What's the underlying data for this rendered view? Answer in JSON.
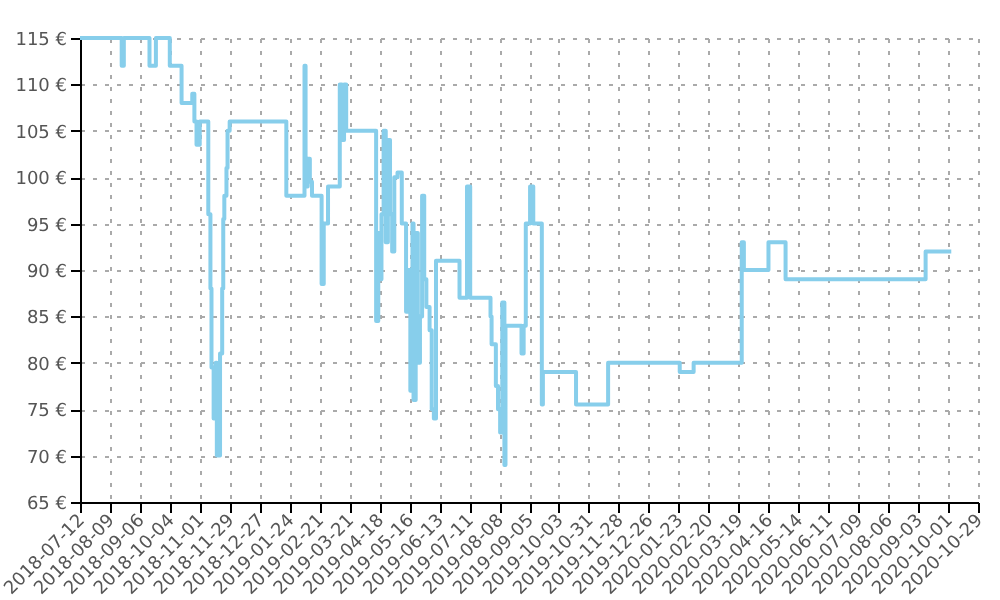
{
  "chart_data": {
    "type": "step",
    "grid": true,
    "line_style": "solid",
    "marker": "none",
    "xlim": [
      "2018-07-12",
      "2020-10-29"
    ],
    "xticks": [
      "2018-07-12",
      "2018-08-09",
      "2018-09-06",
      "2018-10-04",
      "2018-11-01",
      "2018-11-29",
      "2018-12-27",
      "2019-01-24",
      "2019-02-21",
      "2019-03-21",
      "2019-04-18",
      "2019-05-16",
      "2019-06-13",
      "2019-07-11",
      "2019-08-08",
      "2019-09-05",
      "2019-10-03",
      "2019-10-31",
      "2019-11-28",
      "2019-12-26",
      "2020-01-23",
      "2020-02-20",
      "2020-03-19",
      "2020-04-16",
      "2020-05-14",
      "2020-06-11",
      "2020-07-09",
      "2020-08-06",
      "2020-09-03",
      "2020-10-01",
      "2020-10-29"
    ],
    "ylim": [
      65,
      115
    ],
    "yticks": [
      {
        "value": 65,
        "label": "65 €"
      },
      {
        "value": 70,
        "label": "70 €"
      },
      {
        "value": 75,
        "label": "75 €"
      },
      {
        "value": 80,
        "label": "80 €"
      },
      {
        "value": 85,
        "label": "85 €"
      },
      {
        "value": 90,
        "label": "90 €"
      },
      {
        "value": 95,
        "label": "95 €"
      },
      {
        "value": 100,
        "label": "100 €"
      },
      {
        "value": 105,
        "label": "105 €"
      },
      {
        "value": 110,
        "label": "110 €"
      },
      {
        "value": 115,
        "label": "115 €"
      }
    ],
    "x": [
      "2018-07-12",
      "2018-08-20",
      "2018-08-22",
      "2018-09-15",
      "2018-09-21",
      "2018-10-04",
      "2018-10-15",
      "2018-10-25",
      "2018-10-27",
      "2018-10-29",
      "2018-11-01",
      "2018-11-09",
      "2018-11-11",
      "2018-11-12",
      "2018-11-14",
      "2018-11-16",
      "2018-11-17",
      "2018-11-20",
      "2018-11-22",
      "2018-11-23",
      "2018-11-24",
      "2018-11-26",
      "2018-11-27",
      "2018-11-29",
      "2019-01-21",
      "2019-02-07",
      "2019-02-08",
      "2019-02-10",
      "2019-02-12",
      "2019-02-14",
      "2019-02-23",
      "2019-02-25",
      "2019-03-01",
      "2019-03-12",
      "2019-03-14",
      "2019-03-16",
      "2019-03-18",
      "2019-04-15",
      "2019-04-17",
      "2019-04-19",
      "2019-04-20",
      "2019-04-22",
      "2019-04-24",
      "2019-04-26",
      "2019-04-28",
      "2019-04-30",
      "2019-05-02",
      "2019-05-05",
      "2019-05-09",
      "2019-05-13",
      "2019-05-15",
      "2019-05-17",
      "2019-05-19",
      "2019-05-20",
      "2019-05-22",
      "2019-05-24",
      "2019-05-26",
      "2019-05-28",
      "2019-05-30",
      "2019-06-01",
      "2019-06-04",
      "2019-06-06",
      "2019-06-08",
      "2019-06-10",
      "2019-07-02",
      "2019-07-09",
      "2019-07-12",
      "2019-07-31",
      "2019-08-01",
      "2019-08-05",
      "2019-08-07",
      "2019-08-09",
      "2019-08-11",
      "2019-08-13",
      "2019-08-14",
      "2019-08-29",
      "2019-08-31",
      "2019-09-02",
      "2019-09-06",
      "2019-09-09",
      "2019-09-17",
      "2019-09-18",
      "2019-10-19",
      "2019-11-18",
      "2020-01-24",
      "2020-02-06",
      "2020-03-22",
      "2020-03-24",
      "2020-04-16",
      "2020-05-02",
      "2020-09-10",
      "2020-10-04"
    ],
    "series": [
      {
        "color": "#87ceeb",
        "values": [
          115,
          112,
          115,
          112,
          115,
          112,
          108,
          109,
          106,
          103.5,
          106,
          96,
          88,
          79.5,
          74,
          80,
          70,
          81,
          88,
          95.5,
          98,
          101,
          105,
          106,
          98,
          112,
          99,
          102,
          99.5,
          98,
          88.5,
          95,
          99,
          110,
          104,
          110,
          105,
          84.5,
          94,
          89,
          96,
          105,
          93,
          104,
          96,
          92,
          100,
          100.5,
          95,
          85.5,
          90,
          77,
          95,
          76,
          94,
          80,
          85,
          98,
          89,
          86,
          83.5,
          75,
          74,
          91,
          87,
          99,
          87,
          85,
          82,
          77.5,
          75,
          72.5,
          86.5,
          69,
          84,
          81,
          84,
          95,
          99,
          95,
          75.5,
          79,
          75.5,
          80,
          79,
          80,
          93,
          90,
          93,
          89,
          92,
          92
        ]
      }
    ]
  }
}
